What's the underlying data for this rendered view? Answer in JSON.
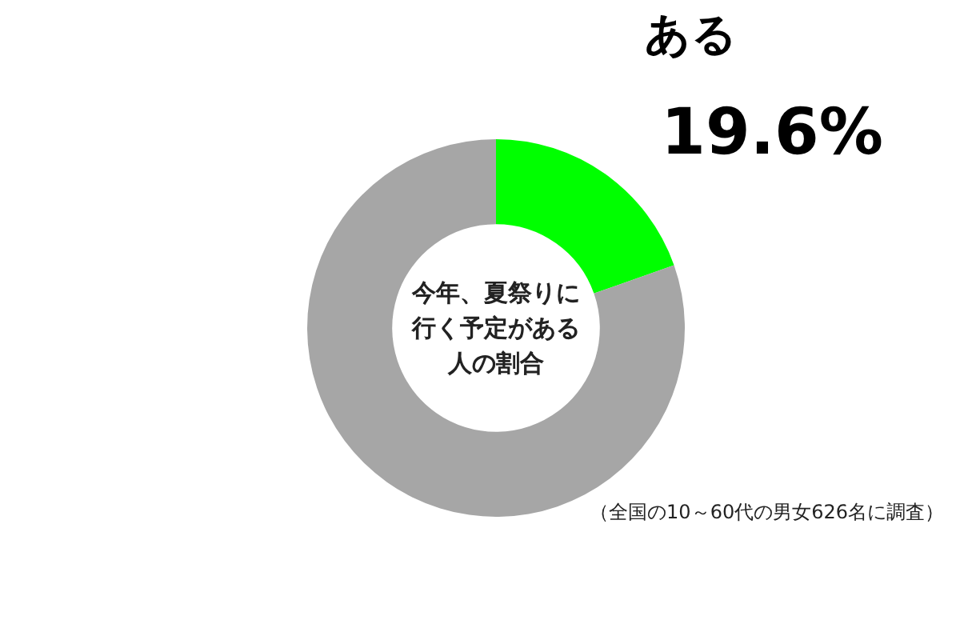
{
  "chart_data": {
    "type": "donut",
    "title": "今年、夏祭りに行く予定がある人の割合",
    "categories": [
      "ある",
      null
    ],
    "values": [
      19.6,
      80.4
    ],
    "colors": [
      "#00ff00",
      "#a6a6a6"
    ],
    "value_labels": [
      "19.6%",
      null
    ],
    "legend": false,
    "annotations": [
      "（全国の10～60代の男女626名に調査）"
    ]
  }
}
